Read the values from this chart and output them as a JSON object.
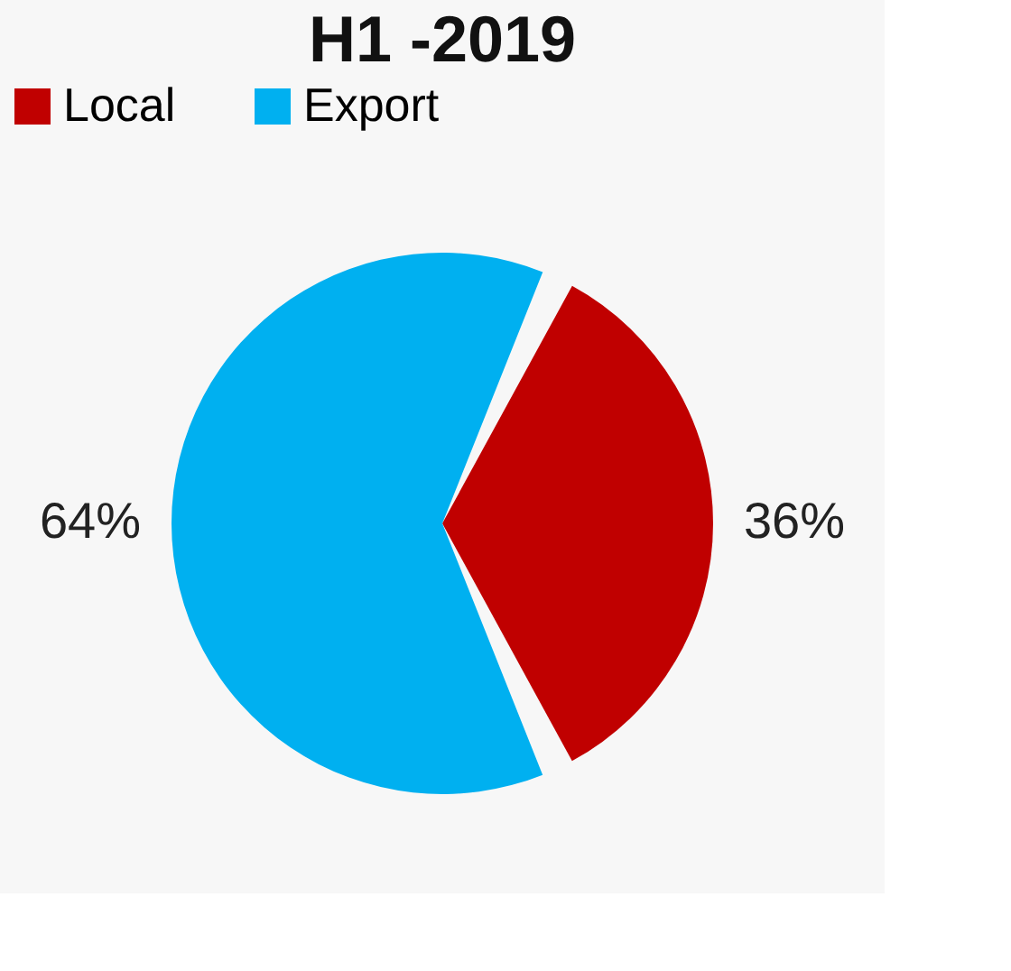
{
  "chart_data": {
    "type": "pie",
    "title": "H1 -2019",
    "categories": [
      "Local",
      "Export"
    ],
    "values": [
      36,
      64
    ],
    "colors": [
      "#c00000",
      "#00b0f0"
    ],
    "value_labels": [
      "36%",
      "64%"
    ],
    "legend": "top"
  }
}
